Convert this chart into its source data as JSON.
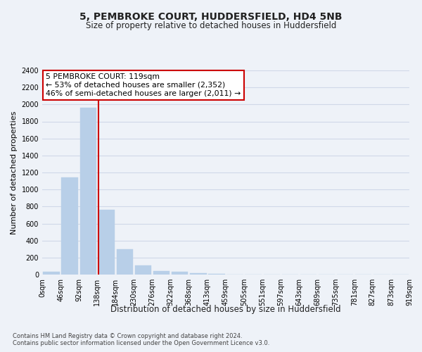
{
  "title": "5, PEMBROKE COURT, HUDDERSFIELD, HD4 5NB",
  "subtitle": "Size of property relative to detached houses in Huddersfield",
  "xlabel": "Distribution of detached houses by size in Huddersfield",
  "ylabel": "Number of detached properties",
  "bar_values": [
    30,
    1140,
    1960,
    760,
    300,
    105,
    40,
    30,
    20,
    10,
    0,
    0,
    0,
    0,
    0,
    0,
    0,
    0,
    0,
    0
  ],
  "x_labels": [
    "0sqm",
    "46sqm",
    "92sqm",
    "138sqm",
    "184sqm",
    "230sqm",
    "276sqm",
    "322sqm",
    "368sqm",
    "413sqm",
    "459sqm",
    "505sqm",
    "551sqm",
    "597sqm",
    "643sqm",
    "689sqm",
    "735sqm",
    "781sqm",
    "827sqm",
    "873sqm",
    "919sqm"
  ],
  "bar_color": "#b8cfe8",
  "bar_edge_color": "#b8cfe8",
  "property_line_x": 2.57,
  "annotation_title": "5 PEMBROKE COURT: 119sqm",
  "annotation_line1": "← 53% of detached houses are smaller (2,352)",
  "annotation_line2": "46% of semi-detached houses are larger (2,011) →",
  "annotation_box_color": "#ffffff",
  "annotation_border_color": "#cc0000",
  "vline_color": "#cc0000",
  "ylim": [
    0,
    2400
  ],
  "yticks": [
    0,
    200,
    400,
    600,
    800,
    1000,
    1200,
    1400,
    1600,
    1800,
    2000,
    2200,
    2400
  ],
  "footer1": "Contains HM Land Registry data © Crown copyright and database right 2024.",
  "footer2": "Contains public sector information licensed under the Open Government Licence v3.0.",
  "grid_color": "#d0d8e8",
  "bg_color": "#eef2f8"
}
